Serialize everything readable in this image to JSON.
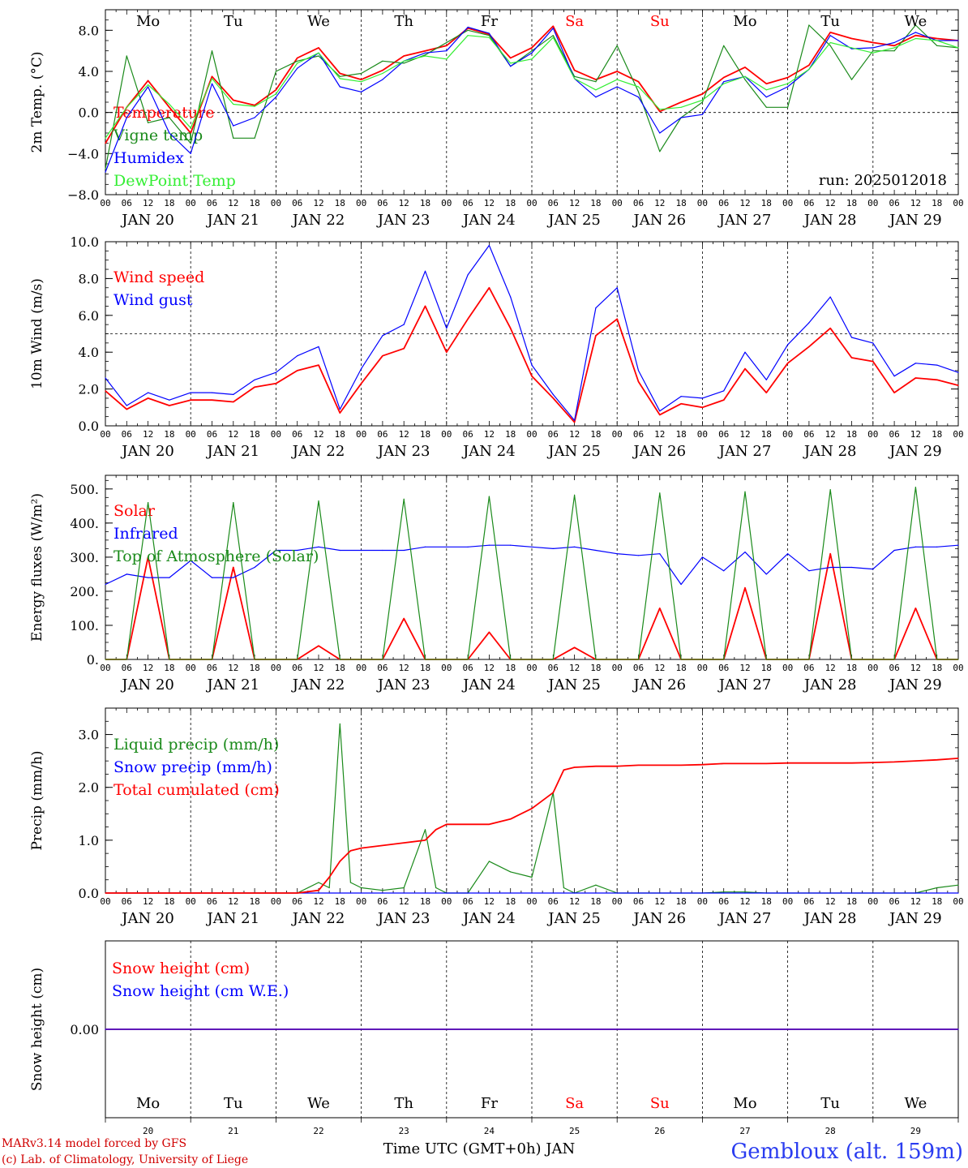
{
  "x_axis_title": "Time UTC (GMT+0h) JAN",
  "station": "Gembloux (alt. 159m)",
  "run_label": "run: 2025012018",
  "credits": [
    "MARv3.14 model forced by GFS",
    "(c) Lab. of Climatology, University of Liege"
  ],
  "days": [
    {
      "abbr": "Mo",
      "date": "JAN 20",
      "num": "20",
      "weekend": false
    },
    {
      "abbr": "Tu",
      "date": "JAN 21",
      "num": "21",
      "weekend": false
    },
    {
      "abbr": "We",
      "date": "JAN 22",
      "num": "22",
      "weekend": false
    },
    {
      "abbr": "Th",
      "date": "JAN 23",
      "num": "23",
      "weekend": false
    },
    {
      "abbr": "Fr",
      "date": "JAN 24",
      "num": "24",
      "weekend": false
    },
    {
      "abbr": "Sa",
      "date": "JAN 25",
      "num": "25",
      "weekend": true
    },
    {
      "abbr": "Su",
      "date": "JAN 26",
      "num": "26",
      "weekend": true
    },
    {
      "abbr": "Mo",
      "date": "JAN 27",
      "num": "27",
      "weekend": false
    },
    {
      "abbr": "Tu",
      "date": "JAN 28",
      "num": "28",
      "weekend": false
    },
    {
      "abbr": "We",
      "date": "JAN 29",
      "num": "29",
      "weekend": false
    }
  ],
  "hour_labels": [
    "00",
    "06",
    "12",
    "18"
  ],
  "colors": {
    "red": "#ff0000",
    "darkgreen": "#1a8a1a",
    "blue": "#0000ff",
    "lightgreen": "#33ee33",
    "axis": "#000000"
  },
  "chart_data": [
    {
      "type": "line",
      "ylabel": "2m Temp. (°C)",
      "ylim": [
        -8,
        10
      ],
      "yticks": [
        -8,
        -4,
        0,
        4,
        8
      ],
      "ytick_labels": [
        "−8.0",
        "−4.0",
        "0.0",
        "4.0",
        "8.0"
      ],
      "refline": 0,
      "x_hours": [
        0,
        6,
        12,
        18,
        24,
        30,
        36,
        42,
        48,
        54,
        60,
        66,
        72,
        78,
        84,
        90,
        96,
        102,
        108,
        114,
        120,
        126,
        132,
        138,
        144,
        150,
        156,
        162,
        168,
        174,
        180,
        186,
        192,
        198,
        204,
        210,
        216,
        222,
        228,
        234,
        240
      ],
      "series": [
        {
          "name": "Temperature",
          "color": "#ff0000",
          "values": [
            -3.0,
            0.5,
            3.1,
            0.5,
            -2.0,
            3.5,
            1.2,
            0.7,
            2.2,
            5.3,
            6.3,
            3.8,
            3.2,
            4.1,
            5.5,
            6.0,
            6.5,
            8.2,
            7.6,
            5.3,
            6.3,
            8.4,
            4.1,
            3.2,
            4.0,
            3.0,
            0.1,
            1.0,
            1.8,
            3.4,
            4.4,
            2.8,
            3.4,
            4.6,
            7.8,
            7.2,
            6.8,
            6.5,
            7.5,
            7.2,
            7.0
          ]
        },
        {
          "name": "Vigne temp",
          "color": "#1a8a1a",
          "values": [
            -5.5,
            5.5,
            -1.0,
            -0.5,
            -3.0,
            6.0,
            -2.5,
            -2.5,
            4.0,
            5.0,
            5.5,
            3.5,
            3.8,
            5.0,
            4.8,
            5.6,
            6.8,
            8.0,
            7.5,
            4.5,
            6.0,
            7.5,
            3.5,
            3.0,
            6.5,
            2.0,
            -3.8,
            -0.5,
            1.0,
            6.5,
            3.2,
            0.5,
            0.5,
            8.5,
            6.5,
            3.2,
            6.0,
            6.0,
            8.5,
            6.5,
            6.3
          ]
        },
        {
          "name": "Humidex",
          "color": "#0000ff",
          "values": [
            -5.8,
            -0.5,
            2.5,
            -2.0,
            -4.0,
            2.8,
            -1.3,
            -0.5,
            1.5,
            4.3,
            5.8,
            2.5,
            2.0,
            3.2,
            5.0,
            5.8,
            6.0,
            8.3,
            7.7,
            4.5,
            5.8,
            8.2,
            3.3,
            1.5,
            2.5,
            1.5,
            -2.0,
            -0.5,
            -0.2,
            3.0,
            3.5,
            1.5,
            2.5,
            4.2,
            7.5,
            6.2,
            6.3,
            6.8,
            7.8,
            7.0,
            7.0
          ]
        },
        {
          "name": "DewPoint Temp",
          "color": "#33ee33",
          "values": [
            -2.5,
            0.5,
            2.7,
            0.8,
            -1.5,
            3.3,
            0.8,
            0.6,
            1.8,
            4.8,
            5.8,
            3.3,
            3.0,
            3.8,
            5.0,
            5.5,
            5.2,
            7.5,
            7.3,
            4.8,
            5.2,
            7.3,
            3.3,
            2.2,
            3.2,
            2.5,
            0.3,
            0.5,
            1.2,
            2.8,
            3.5,
            2.2,
            2.8,
            4.2,
            6.8,
            6.3,
            5.8,
            6.3,
            7.2,
            7.0,
            6.3
          ]
        }
      ]
    },
    {
      "type": "line",
      "ylabel": "10m Wind (m/s)",
      "ylim": [
        0,
        10
      ],
      "yticks": [
        0,
        2,
        4,
        6,
        8,
        10
      ],
      "ytick_labels": [
        "0.0",
        "2.0",
        "4.0",
        "6.0",
        "8.0",
        "10.0"
      ],
      "refline": 5,
      "x_hours": [
        0,
        6,
        12,
        18,
        24,
        30,
        36,
        42,
        48,
        54,
        60,
        66,
        72,
        78,
        84,
        90,
        96,
        102,
        108,
        114,
        120,
        126,
        132,
        138,
        144,
        150,
        156,
        162,
        168,
        174,
        180,
        186,
        192,
        198,
        204,
        210,
        216,
        222,
        228,
        234,
        240
      ],
      "series": [
        {
          "name": "Wind speed",
          "color": "#ff0000",
          "values": [
            1.9,
            0.9,
            1.5,
            1.1,
            1.4,
            1.4,
            1.3,
            2.1,
            2.3,
            3.0,
            3.3,
            0.7,
            2.3,
            3.8,
            4.2,
            6.5,
            4.0,
            5.8,
            7.5,
            5.3,
            2.7,
            1.5,
            0.2,
            4.9,
            5.8,
            2.4,
            0.6,
            1.2,
            1.0,
            1.4,
            3.1,
            1.8,
            3.4,
            4.3,
            5.3,
            3.7,
            3.5,
            1.8,
            2.6,
            2.5,
            2.2
          ]
        },
        {
          "name": "Wind gust",
          "color": "#0000ff",
          "values": [
            2.6,
            1.1,
            1.8,
            1.4,
            1.8,
            1.8,
            1.7,
            2.5,
            2.9,
            3.8,
            4.3,
            0.9,
            3.1,
            4.9,
            5.5,
            8.4,
            5.3,
            8.2,
            9.8,
            7.0,
            3.3,
            1.7,
            0.3,
            6.4,
            7.5,
            3.0,
            0.8,
            1.6,
            1.5,
            1.9,
            4.0,
            2.5,
            4.4,
            5.6,
            7.0,
            4.8,
            4.5,
            2.7,
            3.4,
            3.3,
            2.9
          ]
        }
      ]
    },
    {
      "type": "line",
      "ylabel": "Energy fluxes (W/m²)",
      "ylim": [
        0,
        540
      ],
      "yticks": [
        0,
        100,
        200,
        300,
        400,
        500
      ],
      "ytick_labels": [
        "0.",
        "100.",
        "200.",
        "300.",
        "400.",
        "500."
      ],
      "refline": null,
      "x_hours": [
        0,
        6,
        12,
        18,
        24,
        30,
        36,
        42,
        48,
        54,
        60,
        66,
        72,
        78,
        84,
        90,
        96,
        102,
        108,
        114,
        120,
        126,
        132,
        138,
        144,
        150,
        156,
        162,
        168,
        174,
        180,
        186,
        192,
        198,
        204,
        210,
        216,
        222,
        228,
        234,
        240
      ],
      "series": [
        {
          "name": "Solar",
          "color": "#ff0000",
          "values": [
            0,
            0,
            300,
            0,
            0,
            0,
            270,
            0,
            0,
            0,
            40,
            0,
            0,
            0,
            120,
            0,
            0,
            0,
            80,
            0,
            0,
            0,
            35,
            0,
            0,
            0,
            150,
            0,
            0,
            0,
            210,
            0,
            0,
            0,
            310,
            0,
            0,
            0,
            150,
            0,
            0
          ]
        },
        {
          "name": "Infrared",
          "color": "#0000ff",
          "values": [
            220,
            250,
            240,
            240,
            290,
            240,
            240,
            270,
            320,
            320,
            330,
            320,
            320,
            320,
            320,
            330,
            330,
            330,
            335,
            335,
            330,
            325,
            330,
            320,
            310,
            305,
            310,
            220,
            300,
            260,
            315,
            250,
            310,
            260,
            270,
            270,
            265,
            320,
            330,
            330,
            335
          ]
        },
        {
          "name": "Top of Atmosphere (Solar)",
          "color": "#1a8a1a",
          "values": [
            0,
            0,
            460,
            0,
            0,
            0,
            460,
            0,
            0,
            0,
            465,
            0,
            0,
            0,
            470,
            0,
            0,
            0,
            478,
            0,
            0,
            0,
            482,
            0,
            0,
            0,
            488,
            0,
            0,
            0,
            492,
            0,
            0,
            0,
            498,
            0,
            0,
            0,
            505,
            0,
            0
          ]
        }
      ]
    },
    {
      "type": "line",
      "ylabel": "Precip (mm/h)",
      "ylim": [
        0,
        3.5
      ],
      "yticks": [
        0,
        1,
        2,
        3
      ],
      "ytick_labels": [
        "0.0",
        "1.0",
        "2.0",
        "3.0"
      ],
      "refline": null,
      "x_hours": [
        0,
        6,
        12,
        18,
        24,
        30,
        36,
        42,
        48,
        54,
        60,
        63,
        66,
        69,
        72,
        78,
        84,
        90,
        93,
        96,
        102,
        108,
        114,
        120,
        126,
        129,
        132,
        138,
        144,
        150,
        156,
        162,
        168,
        174,
        180,
        186,
        192,
        198,
        204,
        210,
        216,
        222,
        228,
        234,
        240
      ],
      "series": [
        {
          "name": "Liquid precip (mm/h)",
          "color": "#1a8a1a",
          "values": [
            0,
            0,
            0,
            0,
            0,
            0,
            0,
            0,
            0,
            0,
            0.2,
            0.1,
            3.2,
            0.2,
            0.1,
            0.05,
            0.1,
            1.2,
            0.1,
            0,
            0,
            0.6,
            0.4,
            0.3,
            1.9,
            0.1,
            0,
            0.15,
            0,
            0,
            0,
            0,
            0,
            0.02,
            0.02,
            0,
            0,
            0,
            0,
            0,
            0,
            0,
            0,
            0.1,
            0.15
          ]
        },
        {
          "name": "Snow precip (mm/h)",
          "color": "#0000ff",
          "values": [
            0,
            0,
            0,
            0,
            0,
            0,
            0,
            0,
            0,
            0,
            0,
            0,
            0,
            0,
            0,
            0,
            0,
            0,
            0,
            0,
            0,
            0,
            0,
            0,
            0,
            0,
            0,
            0,
            0,
            0,
            0,
            0,
            0,
            0,
            0,
            0,
            0,
            0,
            0,
            0,
            0,
            0,
            0,
            0,
            0
          ]
        },
        {
          "name": "Total cumulated (cm)",
          "color": "#ff0000",
          "values": [
            0,
            0,
            0,
            0,
            0,
            0,
            0,
            0,
            0,
            0,
            0.05,
            0.3,
            0.6,
            0.8,
            0.85,
            0.9,
            0.95,
            1.0,
            1.2,
            1.3,
            1.3,
            1.3,
            1.4,
            1.6,
            1.9,
            2.33,
            2.38,
            2.4,
            2.4,
            2.42,
            2.42,
            2.42,
            2.43,
            2.45,
            2.45,
            2.45,
            2.46,
            2.46,
            2.46,
            2.46,
            2.47,
            2.48,
            2.5,
            2.52,
            2.55
          ]
        }
      ]
    },
    {
      "type": "line",
      "ylabel": "Snow height (cm)",
      "ylim": [
        -1,
        1
      ],
      "yticks": [
        0
      ],
      "ytick_labels": [
        "0.00"
      ],
      "refline": null,
      "x_hours": [
        0,
        240
      ],
      "series": [
        {
          "name": "Snow height (cm)",
          "color": "#ff0000",
          "values": [
            0,
            0
          ]
        },
        {
          "name": "Snow height (cm W.E.)",
          "color": "#0000ff",
          "values": [
            0,
            0
          ]
        }
      ]
    }
  ]
}
